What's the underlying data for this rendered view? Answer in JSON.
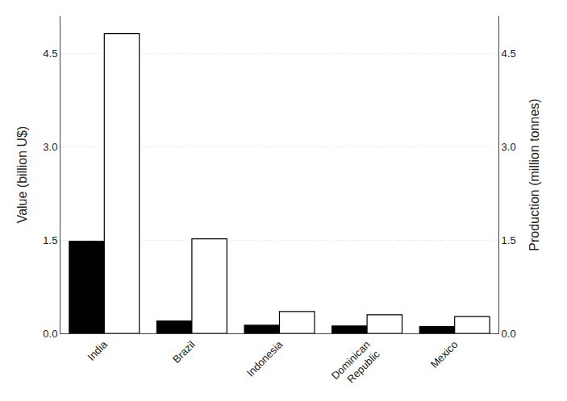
{
  "chart_data": {
    "type": "bar",
    "categories": [
      "India",
      "Brazil",
      "Indonesia",
      "Dominican\nRepublic",
      "Mexico"
    ],
    "series": [
      {
        "color": "#000000",
        "values": [
          1.48,
          0.2,
          0.13,
          0.12,
          0.11
        ]
      },
      {
        "color": "#ffffff",
        "values": [
          4.82,
          1.52,
          0.35,
          0.3,
          0.27
        ]
      }
    ],
    "ylabel": "Value (billion U$)",
    "y2label": "Production (million tonnes)",
    "ylim": [
      0.0,
      5.1
    ],
    "yticks": [
      {
        "value": 0.0,
        "label": "0.0"
      },
      1.5,
      {
        "value": 3.0,
        "label": "3.0"
      },
      4.5
    ],
    "y2lim": [
      0.0,
      5.1
    ],
    "y2ticks": [
      {
        "value": 0.0,
        "label": "0.0"
      },
      1.5,
      {
        "value": 3.0,
        "label": "3.0"
      },
      4.5
    ],
    "grid": true
  }
}
